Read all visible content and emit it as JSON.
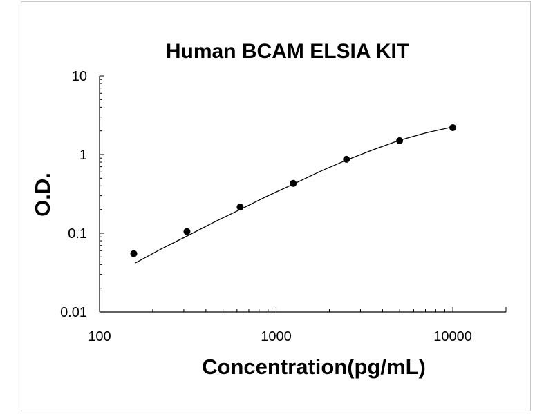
{
  "chart_data": {
    "type": "scatter",
    "title": "Human BCAM ELSIA KIT",
    "xlabel": "Concentration(pg/mL)",
    "ylabel": "O.D.",
    "x_scale": "log",
    "y_scale": "log",
    "xlim": [
      100,
      20000
    ],
    "ylim": [
      0.01,
      10
    ],
    "x_ticks": [
      {
        "value": 100,
        "label": "100"
      },
      {
        "value": 1000,
        "label": "1000"
      },
      {
        "value": 10000,
        "label": "10000"
      }
    ],
    "y_ticks": [
      {
        "value": 0.01,
        "label": "0.01"
      },
      {
        "value": 0.1,
        "label": "0.1"
      },
      {
        "value": 1,
        "label": "1"
      },
      {
        "value": 10,
        "label": "10"
      }
    ],
    "grid": false,
    "legend": "none",
    "point_color": "#000000",
    "series": [
      {
        "kind": "points",
        "x": [
          156.25,
          312.5,
          625,
          1250,
          2500,
          5000,
          10000
        ],
        "y": [
          0.055,
          0.105,
          0.215,
          0.43,
          0.87,
          1.5,
          2.2
        ]
      },
      {
        "kind": "fit-curve",
        "x": [
          160,
          220,
          312.5,
          450,
          625,
          900,
          1250,
          1800,
          2500,
          3500,
          5000,
          7000,
          10000
        ],
        "y": [
          0.042,
          0.062,
          0.092,
          0.14,
          0.2,
          0.3,
          0.42,
          0.62,
          0.85,
          1.14,
          1.52,
          1.88,
          2.25
        ]
      }
    ]
  }
}
